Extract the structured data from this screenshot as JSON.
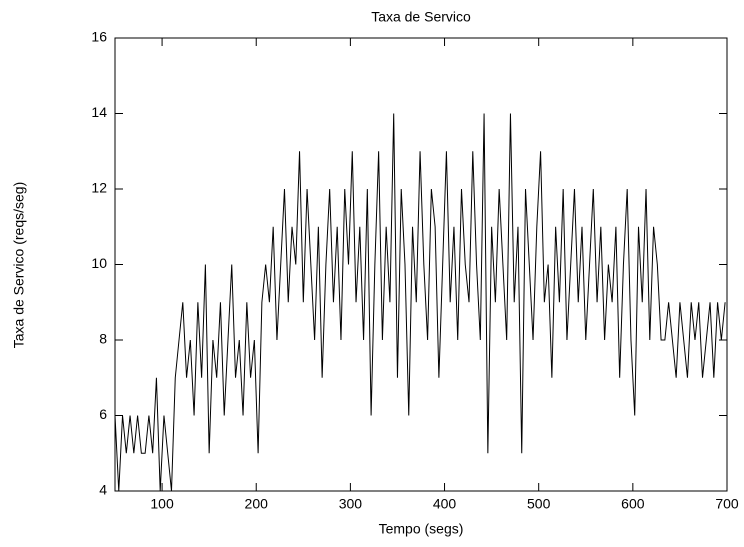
{
  "chart_data": {
    "type": "line",
    "title": "Taxa de Servico",
    "xlabel": "Tempo (segs)",
    "ylabel": "Taxa de Servico (reqs/seg)",
    "color": "#000000",
    "xlim": [
      50,
      700
    ],
    "xticks": [
      100,
      200,
      300,
      400,
      500,
      600,
      700
    ],
    "ylim": [
      4,
      16
    ],
    "yticks": [
      4,
      6,
      8,
      10,
      12,
      14,
      16
    ],
    "grid": false,
    "x": [
      50,
      54,
      58,
      62,
      66,
      70,
      74,
      78,
      82,
      86,
      90,
      94,
      98,
      102,
      106,
      110,
      114,
      118,
      122,
      126,
      130,
      134,
      138,
      142,
      146,
      150,
      154,
      158,
      162,
      166,
      170,
      174,
      178,
      182,
      186,
      190,
      194,
      198,
      202,
      206,
      210,
      214,
      218,
      222,
      226,
      230,
      234,
      238,
      242,
      246,
      250,
      254,
      258,
      262,
      266,
      270,
      274,
      278,
      282,
      286,
      290,
      294,
      298,
      302,
      306,
      310,
      314,
      318,
      322,
      326,
      330,
      334,
      338,
      342,
      346,
      350,
      354,
      358,
      362,
      366,
      370,
      374,
      378,
      382,
      386,
      390,
      394,
      398,
      402,
      406,
      410,
      414,
      418,
      422,
      426,
      430,
      434,
      438,
      442,
      446,
      450,
      454,
      458,
      462,
      466,
      470,
      474,
      478,
      482,
      486,
      490,
      494,
      498,
      502,
      506,
      510,
      514,
      518,
      522,
      526,
      530,
      534,
      538,
      542,
      546,
      550,
      554,
      558,
      562,
      566,
      570,
      574,
      578,
      582,
      586,
      590,
      594,
      598,
      602,
      606,
      610,
      614,
      618,
      622,
      626,
      630,
      634,
      638,
      642,
      646,
      650,
      654,
      658,
      662,
      666,
      670,
      674,
      678,
      682,
      686,
      690,
      694,
      698
    ],
    "values": [
      6,
      4,
      6,
      5,
      6,
      5,
      6,
      5,
      5,
      6,
      5,
      7,
      4,
      6,
      5,
      4,
      7,
      8,
      9,
      7,
      8,
      6,
      9,
      7,
      10,
      5,
      8,
      7,
      9,
      6,
      8,
      10,
      7,
      8,
      6,
      9,
      7,
      8,
      5,
      9,
      10,
      9,
      11,
      8,
      10,
      12,
      9,
      11,
      10,
      13,
      9,
      12,
      10,
      8,
      11,
      7,
      10,
      12,
      9,
      11,
      8,
      12,
      10,
      13,
      9,
      11,
      8,
      12,
      6,
      10,
      13,
      8,
      11,
      9,
      14,
      7,
      12,
      10,
      6,
      11,
      9,
      13,
      10,
      8,
      12,
      11,
      7,
      10,
      13,
      9,
      11,
      8,
      12,
      10,
      9,
      13,
      10,
      8,
      14,
      5,
      11,
      9,
      12,
      10,
      8,
      14,
      9,
      11,
      5,
      12,
      10,
      8,
      11,
      13,
      9,
      10,
      7,
      11,
      9,
      12,
      8,
      10,
      12,
      9,
      11,
      8,
      10,
      12,
      9,
      11,
      8,
      10,
      9,
      11,
      7,
      10,
      12,
      8,
      6,
      11,
      9,
      12,
      8,
      11,
      10,
      8,
      8,
      9,
      8,
      7,
      9,
      8,
      7,
      9,
      8,
      9,
      7,
      8,
      9,
      7,
      9,
      8,
      9
    ]
  }
}
